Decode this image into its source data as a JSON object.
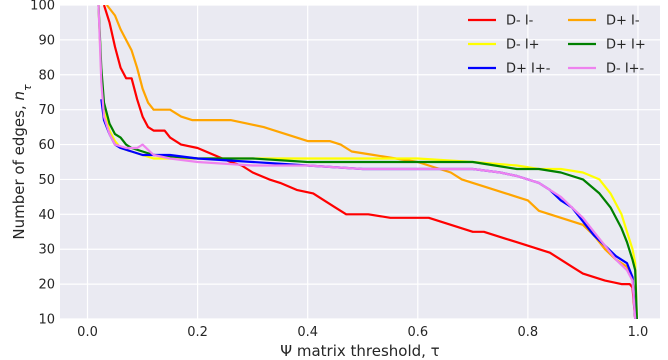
{
  "chart_data": {
    "type": "line",
    "title": "",
    "xlabel": "Ψ matrix threshold, τ",
    "ylabel": "Number of edges, ",
    "ylabel_var": "n",
    "ylabel_sub": "τ",
    "xlim": [
      -0.05,
      1.04
    ],
    "ylim": [
      10,
      100
    ],
    "xticks": [
      0.0,
      0.2,
      0.4,
      0.6,
      0.8,
      1.0
    ],
    "xtick_labels": [
      "0.0",
      "0.2",
      "0.4",
      "0.6",
      "0.8",
      "1.0"
    ],
    "yticks": [
      10,
      20,
      30,
      40,
      50,
      60,
      70,
      80,
      90,
      100
    ],
    "ytick_labels": [
      "10",
      "20",
      "30",
      "40",
      "50",
      "60",
      "70",
      "80",
      "90",
      "100"
    ],
    "grid": true,
    "legend_position": "top-right",
    "series": [
      {
        "name": "D- I-",
        "color": "#ff0000",
        "points": [
          [
            0.03,
            100
          ],
          [
            0.04,
            95
          ],
          [
            0.05,
            88
          ],
          [
            0.06,
            82
          ],
          [
            0.07,
            79
          ],
          [
            0.08,
            79
          ],
          [
            0.09,
            73
          ],
          [
            0.1,
            68
          ],
          [
            0.11,
            65
          ],
          [
            0.12,
            64
          ],
          [
            0.14,
            64
          ],
          [
            0.15,
            62
          ],
          [
            0.17,
            60
          ],
          [
            0.2,
            59
          ],
          [
            0.23,
            57
          ],
          [
            0.26,
            55
          ],
          [
            0.28,
            54
          ],
          [
            0.3,
            52
          ],
          [
            0.33,
            50
          ],
          [
            0.35,
            49
          ],
          [
            0.38,
            47
          ],
          [
            0.41,
            46
          ],
          [
            0.43,
            44
          ],
          [
            0.45,
            42
          ],
          [
            0.47,
            40
          ],
          [
            0.51,
            40
          ],
          [
            0.55,
            39
          ],
          [
            0.58,
            39
          ],
          [
            0.62,
            39
          ],
          [
            0.64,
            38
          ],
          [
            0.66,
            37
          ],
          [
            0.68,
            36
          ],
          [
            0.7,
            35
          ],
          [
            0.72,
            35
          ],
          [
            0.74,
            34
          ],
          [
            0.76,
            33
          ],
          [
            0.78,
            32
          ],
          [
            0.8,
            31
          ],
          [
            0.82,
            30
          ],
          [
            0.84,
            29
          ],
          [
            0.86,
            27
          ],
          [
            0.88,
            25
          ],
          [
            0.9,
            23
          ],
          [
            0.92,
            22
          ],
          [
            0.94,
            21
          ],
          [
            0.97,
            20
          ],
          [
            0.985,
            20
          ],
          [
            0.99,
            19
          ],
          [
            0.995,
            10
          ]
        ]
      },
      {
        "name": "D+ I-",
        "color": "#ffa500",
        "points": [
          [
            0.035,
            100
          ],
          [
            0.05,
            97
          ],
          [
            0.06,
            93
          ],
          [
            0.07,
            90
          ],
          [
            0.08,
            87
          ],
          [
            0.09,
            82
          ],
          [
            0.1,
            76
          ],
          [
            0.11,
            72
          ],
          [
            0.12,
            70
          ],
          [
            0.15,
            70
          ],
          [
            0.17,
            68
          ],
          [
            0.19,
            67
          ],
          [
            0.26,
            67
          ],
          [
            0.29,
            66
          ],
          [
            0.32,
            65
          ],
          [
            0.36,
            63
          ],
          [
            0.4,
            61
          ],
          [
            0.44,
            61
          ],
          [
            0.46,
            60
          ],
          [
            0.48,
            58
          ],
          [
            0.52,
            57
          ],
          [
            0.56,
            56
          ],
          [
            0.6,
            55
          ],
          [
            0.64,
            53
          ],
          [
            0.66,
            52
          ],
          [
            0.68,
            50
          ],
          [
            0.7,
            49
          ],
          [
            0.72,
            48
          ],
          [
            0.74,
            47
          ],
          [
            0.76,
            46
          ],
          [
            0.78,
            45
          ],
          [
            0.8,
            44
          ],
          [
            0.82,
            41
          ],
          [
            0.84,
            40
          ],
          [
            0.86,
            39
          ],
          [
            0.88,
            38
          ],
          [
            0.9,
            37
          ],
          [
            0.92,
            34
          ],
          [
            0.94,
            30
          ],
          [
            0.96,
            27
          ],
          [
            0.98,
            25
          ],
          [
            0.99,
            22
          ],
          [
            0.995,
            10
          ]
        ]
      },
      {
        "name": "D- I+",
        "color": "#ffff00",
        "points": [
          [
            0.02,
            100
          ],
          [
            0.025,
            80
          ],
          [
            0.03,
            70
          ],
          [
            0.04,
            64
          ],
          [
            0.05,
            61
          ],
          [
            0.06,
            59
          ],
          [
            0.08,
            58
          ],
          [
            0.1,
            57
          ],
          [
            0.12,
            56
          ],
          [
            0.2,
            56
          ],
          [
            0.3,
            56
          ],
          [
            0.4,
            56
          ],
          [
            0.5,
            56
          ],
          [
            0.6,
            56
          ],
          [
            0.7,
            55
          ],
          [
            0.78,
            54
          ],
          [
            0.82,
            53
          ],
          [
            0.86,
            53
          ],
          [
            0.9,
            52
          ],
          [
            0.93,
            50
          ],
          [
            0.95,
            46
          ],
          [
            0.97,
            40
          ],
          [
            0.98,
            35
          ],
          [
            0.99,
            30
          ],
          [
            0.995,
            26
          ],
          [
            0.998,
            10
          ]
        ]
      },
      {
        "name": "D+ I+",
        "color": "#008000",
        "points": [
          [
            0.02,
            100
          ],
          [
            0.025,
            82
          ],
          [
            0.03,
            72
          ],
          [
            0.04,
            66
          ],
          [
            0.05,
            63
          ],
          [
            0.06,
            62
          ],
          [
            0.07,
            60
          ],
          [
            0.08,
            59
          ],
          [
            0.1,
            58
          ],
          [
            0.12,
            57
          ],
          [
            0.2,
            56
          ],
          [
            0.3,
            56
          ],
          [
            0.4,
            55
          ],
          [
            0.5,
            55
          ],
          [
            0.6,
            55
          ],
          [
            0.7,
            55
          ],
          [
            0.74,
            54
          ],
          [
            0.78,
            53
          ],
          [
            0.82,
            53
          ],
          [
            0.86,
            52
          ],
          [
            0.9,
            50
          ],
          [
            0.93,
            46
          ],
          [
            0.95,
            42
          ],
          [
            0.97,
            36
          ],
          [
            0.98,
            32
          ],
          [
            0.99,
            27
          ],
          [
            0.995,
            24
          ],
          [
            0.998,
            10
          ]
        ]
      },
      {
        "name": "D+ I+-",
        "color": "#0000ff",
        "points": [
          [
            0.025,
            73
          ],
          [
            0.03,
            67
          ],
          [
            0.04,
            63
          ],
          [
            0.05,
            60
          ],
          [
            0.06,
            59
          ],
          [
            0.08,
            58
          ],
          [
            0.1,
            57
          ],
          [
            0.15,
            57
          ],
          [
            0.2,
            56
          ],
          [
            0.3,
            55
          ],
          [
            0.4,
            54
          ],
          [
            0.5,
            53
          ],
          [
            0.6,
            53
          ],
          [
            0.7,
            53
          ],
          [
            0.75,
            52
          ],
          [
            0.78,
            51
          ],
          [
            0.8,
            50
          ],
          [
            0.82,
            49
          ],
          [
            0.84,
            47
          ],
          [
            0.86,
            44
          ],
          [
            0.88,
            42
          ],
          [
            0.9,
            38
          ],
          [
            0.92,
            34
          ],
          [
            0.94,
            31
          ],
          [
            0.96,
            28
          ],
          [
            0.98,
            26
          ],
          [
            0.99,
            22
          ],
          [
            0.995,
            10
          ]
        ]
      },
      {
        "name": "D- I+-",
        "color": "#ee82ee",
        "points": [
          [
            0.02,
            100
          ],
          [
            0.025,
            78
          ],
          [
            0.03,
            68
          ],
          [
            0.04,
            63
          ],
          [
            0.05,
            60
          ],
          [
            0.07,
            59
          ],
          [
            0.09,
            59
          ],
          [
            0.1,
            60
          ],
          [
            0.12,
            57
          ],
          [
            0.15,
            56
          ],
          [
            0.2,
            55
          ],
          [
            0.3,
            54
          ],
          [
            0.4,
            54
          ],
          [
            0.5,
            53
          ],
          [
            0.6,
            53
          ],
          [
            0.7,
            53
          ],
          [
            0.75,
            52
          ],
          [
            0.78,
            51
          ],
          [
            0.8,
            50
          ],
          [
            0.82,
            49
          ],
          [
            0.84,
            47
          ],
          [
            0.86,
            45
          ],
          [
            0.88,
            42
          ],
          [
            0.9,
            39
          ],
          [
            0.92,
            35
          ],
          [
            0.94,
            31
          ],
          [
            0.96,
            27
          ],
          [
            0.98,
            24
          ],
          [
            0.99,
            21
          ],
          [
            0.995,
            10
          ]
        ]
      }
    ]
  },
  "colors": {
    "plot_background": "#eaeaf2",
    "grid": "#ffffff",
    "text": "#262626"
  }
}
